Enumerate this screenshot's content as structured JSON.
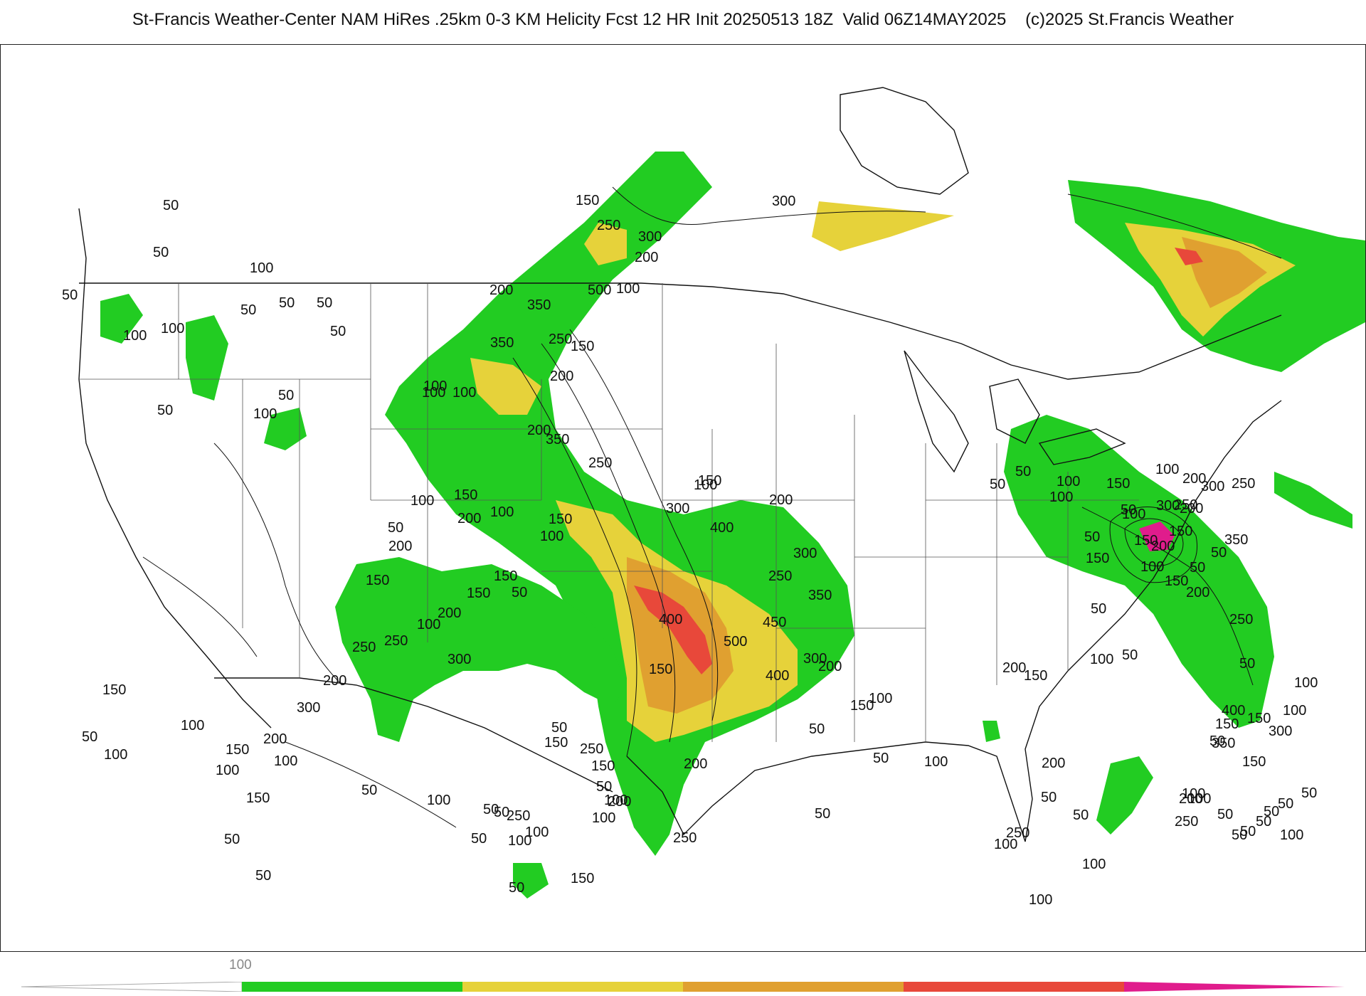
{
  "header": {
    "title": "St-Francis Weather-Center NAM HiRes .25km 0-3 KM Helicity Fcst 12 HR Init 20250513 18Z  Valid 06Z14MAY2025    (c)2025 St.Francis Weather"
  },
  "map": {
    "field": "0-3 KM Helicity",
    "contour_labels": [
      {
        "text": "50"
      },
      {
        "text": "50"
      },
      {
        "text": "50"
      },
      {
        "text": "100"
      },
      {
        "text": "100"
      },
      {
        "text": "50"
      },
      {
        "text": "100"
      },
      {
        "text": "50"
      },
      {
        "text": "50"
      },
      {
        "text": "50"
      },
      {
        "text": "50"
      },
      {
        "text": "100"
      },
      {
        "text": "50"
      },
      {
        "text": "100"
      },
      {
        "text": "150"
      },
      {
        "text": "250"
      },
      {
        "text": "300"
      },
      {
        "text": "300"
      },
      {
        "text": "200"
      },
      {
        "text": "500"
      },
      {
        "text": "100"
      },
      {
        "text": "200"
      },
      {
        "text": "350"
      },
      {
        "text": "250"
      },
      {
        "text": "350"
      },
      {
        "text": "200"
      },
      {
        "text": "150"
      },
      {
        "text": "100"
      },
      {
        "text": "100"
      },
      {
        "text": "200"
      },
      {
        "text": "350"
      },
      {
        "text": "150"
      },
      {
        "text": "250"
      },
      {
        "text": "100"
      },
      {
        "text": "300"
      },
      {
        "text": "150"
      },
      {
        "text": "400"
      },
      {
        "text": "200"
      },
      {
        "text": "300"
      },
      {
        "text": "250"
      },
      {
        "text": "350"
      },
      {
        "text": "450"
      },
      {
        "text": "400"
      },
      {
        "text": "500"
      },
      {
        "text": "150"
      },
      {
        "text": "300"
      },
      {
        "text": "400"
      },
      {
        "text": "200"
      },
      {
        "text": "150"
      },
      {
        "text": "100"
      },
      {
        "text": "200"
      },
      {
        "text": "250"
      },
      {
        "text": "50"
      },
      {
        "text": "200"
      },
      {
        "text": "150"
      },
      {
        "text": "150"
      },
      {
        "text": "50"
      },
      {
        "text": "100"
      },
      {
        "text": "200"
      },
      {
        "text": "100"
      },
      {
        "text": "150"
      },
      {
        "text": "100"
      },
      {
        "text": "50"
      },
      {
        "text": "200"
      },
      {
        "text": "150"
      },
      {
        "text": "100"
      },
      {
        "text": "250"
      },
      {
        "text": "300"
      },
      {
        "text": "250"
      },
      {
        "text": "200"
      },
      {
        "text": "300"
      },
      {
        "text": "200"
      },
      {
        "text": "150"
      },
      {
        "text": "100"
      },
      {
        "text": "150"
      },
      {
        "text": "50"
      },
      {
        "text": "100"
      },
      {
        "text": "150"
      },
      {
        "text": "100"
      },
      {
        "text": "50"
      },
      {
        "text": "50"
      },
      {
        "text": "100"
      },
      {
        "text": "50"
      },
      {
        "text": "100"
      },
      {
        "text": "50"
      },
      {
        "text": "100"
      },
      {
        "text": "250"
      },
      {
        "text": "50"
      },
      {
        "text": "50"
      },
      {
        "text": "100"
      },
      {
        "text": "150"
      },
      {
        "text": "100"
      },
      {
        "text": "200"
      },
      {
        "text": "250"
      },
      {
        "text": "150"
      },
      {
        "text": "100"
      },
      {
        "text": "50"
      },
      {
        "text": "150"
      },
      {
        "text": "50"
      },
      {
        "text": "50"
      },
      {
        "text": "50"
      },
      {
        "text": "50"
      },
      {
        "text": "100"
      },
      {
        "text": "100"
      },
      {
        "text": "50"
      },
      {
        "text": "50"
      },
      {
        "text": "100"
      },
      {
        "text": "100"
      },
      {
        "text": "200"
      },
      {
        "text": "250"
      },
      {
        "text": "200"
      },
      {
        "text": "150"
      },
      {
        "text": "100"
      },
      {
        "text": "50"
      },
      {
        "text": "50"
      },
      {
        "text": "150"
      },
      {
        "text": "50"
      },
      {
        "text": "100"
      },
      {
        "text": "50"
      },
      {
        "text": "100"
      },
      {
        "text": "150"
      },
      {
        "text": "200"
      },
      {
        "text": "200"
      },
      {
        "text": "250"
      },
      {
        "text": "50"
      },
      {
        "text": "100"
      },
      {
        "text": "100"
      },
      {
        "text": "150"
      },
      {
        "text": "350"
      },
      {
        "text": "150"
      },
      {
        "text": "100"
      },
      {
        "text": "250"
      },
      {
        "text": "200"
      },
      {
        "text": "100"
      },
      {
        "text": "50"
      },
      {
        "text": "50"
      },
      {
        "text": "50"
      },
      {
        "text": "50"
      },
      {
        "text": "50"
      },
      {
        "text": "100"
      },
      {
        "text": "50"
      },
      {
        "text": "50"
      },
      {
        "text": "50"
      },
      {
        "text": "150"
      },
      {
        "text": "300"
      },
      {
        "text": "400"
      },
      {
        "text": "350"
      },
      {
        "text": "300"
      },
      {
        "text": "250"
      },
      {
        "text": "200"
      },
      {
        "text": "150"
      },
      {
        "text": "100"
      },
      {
        "text": "150"
      },
      {
        "text": "50"
      },
      {
        "text": "50"
      },
      {
        "text": "100"
      },
      {
        "text": "200"
      },
      {
        "text": "250"
      },
      {
        "text": "300"
      },
      {
        "text": "150"
      },
      {
        "text": "100"
      },
      {
        "text": "50"
      },
      {
        "text": "50"
      },
      {
        "text": "50"
      }
    ],
    "fill_colors": {
      "green": "#22cc22",
      "yellow": "#e6d23a",
      "orange": "#e0a030",
      "red": "#e8483a",
      "magenta": "#e01c8c"
    }
  },
  "colorbar": {
    "tick_label": "100",
    "segments": [
      {
        "color": "#ffffff"
      },
      {
        "color": "#22cc22"
      },
      {
        "color": "#e6d23a"
      },
      {
        "color": "#e0a030"
      },
      {
        "color": "#e8483a"
      },
      {
        "color": "#e01c8c"
      }
    ]
  }
}
